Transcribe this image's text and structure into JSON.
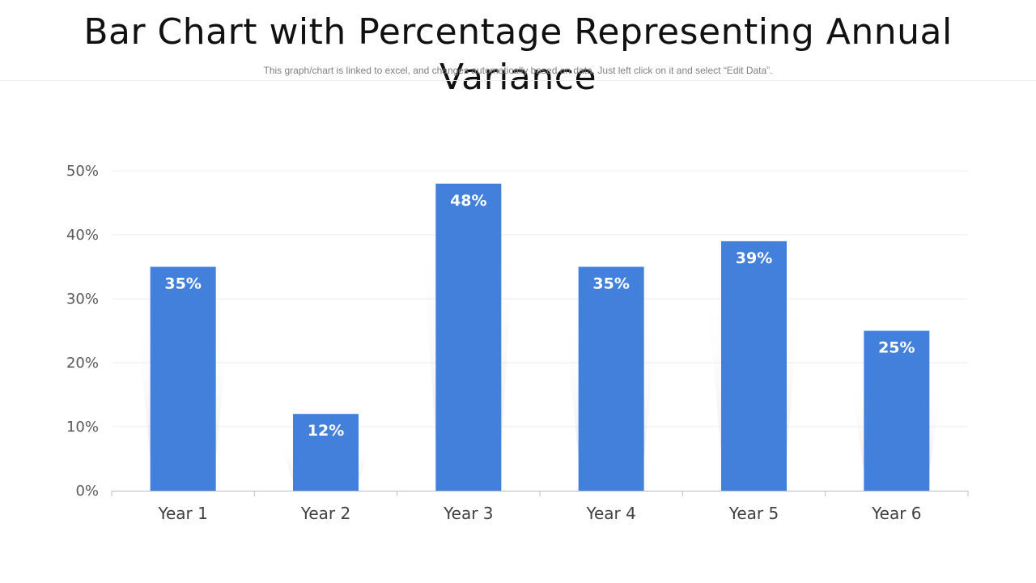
{
  "header": {
    "title": "Bar Chart with Percentage Representing Annual Variance",
    "subtitle": "This graph/chart is linked to excel, and changes automatically based on data. Just left click on it and select “Edit Data”."
  },
  "colors": {
    "bar": "#4380dc",
    "shadow": "#cfcfcf",
    "grid": "#ececec",
    "axis": "#bfbfbf"
  },
  "chart_data": {
    "type": "bar",
    "title": "Bar Chart with Percentage Representing Annual Variance",
    "xlabel": "",
    "ylabel": "",
    "categories": [
      "Year 1",
      "Year 2",
      "Year 3",
      "Year 4",
      "Year 5",
      "Year 6"
    ],
    "values": [
      35,
      12,
      48,
      35,
      39,
      25
    ],
    "value_labels": [
      "35%",
      "12%",
      "48%",
      "35%",
      "39%",
      "25%"
    ],
    "ylim": [
      0,
      50
    ],
    "yticks": [
      0,
      10,
      20,
      30,
      40,
      50
    ],
    "ytick_labels": [
      "0%",
      "10%",
      "20%",
      "30%",
      "40%",
      "50%"
    ],
    "grid": true,
    "legend": "none"
  }
}
